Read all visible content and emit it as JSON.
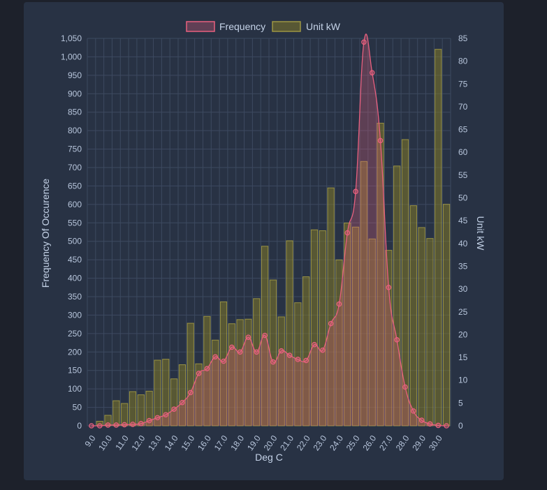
{
  "chart_data": {
    "type": "bar",
    "title": "",
    "xlabel": "Deg C",
    "ylabel_left": "Frequency Of Occurence",
    "ylabel_right": "Unit kW",
    "ylim_left": [
      0,
      1050
    ],
    "ylim_right": [
      0,
      85
    ],
    "y_ticks_left": [
      "0",
      "50",
      "100",
      "150",
      "200",
      "250",
      "300",
      "350",
      "400",
      "450",
      "500",
      "550",
      "600",
      "650",
      "700",
      "750",
      "800",
      "850",
      "900",
      "950",
      "1,000",
      "1,050"
    ],
    "y_ticks_right": [
      "0",
      "5",
      "10",
      "15",
      "20",
      "25",
      "30",
      "35",
      "40",
      "45",
      "50",
      "55",
      "60",
      "65",
      "70",
      "75",
      "80",
      "85"
    ],
    "x_tick_labels": [
      "9.0",
      "10.0",
      "11.0",
      "12.0",
      "13.0",
      "14.0",
      "15.0",
      "16.0",
      "17.0",
      "18.0",
      "19.0",
      "20.0",
      "21.0",
      "22.0",
      "23.0",
      "24.0",
      "25.0",
      "26.0",
      "27.0",
      "28.0",
      "29.0",
      "30.0"
    ],
    "x": [
      9.0,
      9.5,
      10.0,
      10.5,
      11.0,
      11.5,
      12.0,
      12.5,
      13.0,
      13.5,
      14.0,
      14.5,
      15.0,
      15.5,
      16.0,
      16.5,
      17.0,
      17.5,
      18.0,
      18.5,
      19.0,
      19.5,
      20.0,
      20.5,
      21.0,
      21.5,
      22.0,
      22.5,
      23.0,
      23.5,
      24.0,
      24.5,
      25.0,
      25.5,
      26.0,
      26.5,
      27.0,
      27.5,
      28.0,
      28.5,
      29.0,
      29.5,
      30.0,
      30.5
    ],
    "legend": {
      "position": "top",
      "items": [
        "Frequency",
        "Unit kW"
      ]
    },
    "grid": true,
    "series": [
      {
        "name": "Frequency",
        "type": "line",
        "axis": "left",
        "color": "#e8607f",
        "fill": "rgba(232,96,127,0.28)",
        "values": [
          0,
          0,
          2,
          2,
          3,
          4,
          6,
          14,
          22,
          30,
          45,
          63,
          90,
          142,
          155,
          187,
          175,
          213,
          200,
          240,
          200,
          245,
          173,
          203,
          191,
          180,
          177,
          220,
          205,
          277,
          330,
          523,
          635,
          1040,
          957,
          773,
          375,
          233,
          105,
          40,
          15,
          5,
          1,
          0
        ]
      },
      {
        "name": "Unit kW",
        "type": "bar",
        "axis": "right",
        "color": "rgba(128,120,40,0.55)",
        "border": "rgba(180,170,70,0.75)",
        "values": [
          0,
          1,
          2.3,
          5.5,
          4.9,
          7.5,
          6.8,
          7.6,
          14.4,
          14.6,
          10.3,
          13.4,
          22.5,
          13.6,
          24,
          18.8,
          27.2,
          22.4,
          23.3,
          23.4,
          27.9,
          39.4,
          32,
          23.9,
          40.6,
          27,
          32.7,
          43,
          42.8,
          52.2,
          36.4,
          44.5,
          43.6,
          58,
          41,
          66.4,
          38.5,
          57,
          62.8,
          48.3,
          43.5,
          41.1,
          82.6,
          48.6
        ]
      }
    ],
    "colors": {
      "background": "#1d212b",
      "panel": "#283244",
      "grid": "#3d4a60",
      "tick_text": "#b8c6dc"
    }
  }
}
